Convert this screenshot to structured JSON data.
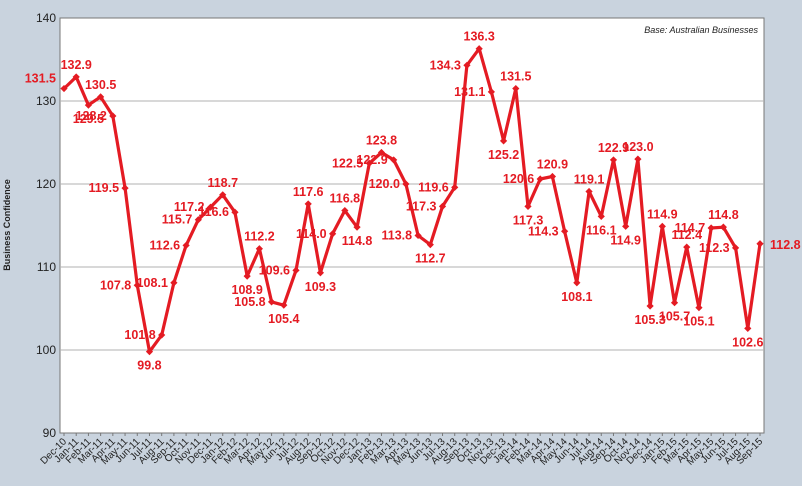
{
  "chart_data": {
    "type": "line",
    "title": "",
    "xlabel": "",
    "ylabel": "Business Confidence",
    "note": "Base: Australian Businesses",
    "ylim": [
      90,
      140
    ],
    "yticks": [
      90,
      100,
      110,
      120,
      130,
      140
    ],
    "grid": true,
    "line_color": "#e41b23",
    "categories": [
      "Dec-10",
      "Jan-11",
      "Feb-11",
      "Mar-11",
      "Apr-11",
      "May-11",
      "Jun-11",
      "Jul-11",
      "Aug-11",
      "Sep-11",
      "Oct-11",
      "Nov-11",
      "Dec-11",
      "Jan-12",
      "Feb-12",
      "Mar-12",
      "Apr-12",
      "May-12",
      "Jun-12",
      "Jul-12",
      "Aug-12",
      "Sep-12",
      "Oct-12",
      "Nov-12",
      "Dec-12",
      "Jan-13",
      "Feb-13",
      "Mar-13",
      "Apr-13",
      "May-13",
      "Jun-13",
      "Jul-13",
      "Aug-13",
      "Sep-13",
      "Oct-13",
      "Nov-13",
      "Dec-13",
      "Jan-14",
      "Feb-14",
      "Mar-14",
      "Apr-14",
      "May-14",
      "Jun-14",
      "Jul-14",
      "Aug-14",
      "Sep-14",
      "Oct-14",
      "Nov-14",
      "Dec-14",
      "Jan-15",
      "Feb-15",
      "Mar-15",
      "Apr-15",
      "May-15",
      "Jun-15",
      "Jul-15",
      "Aug-15",
      "Sep-15"
    ],
    "values": [
      131.5,
      132.9,
      129.5,
      130.5,
      128.2,
      119.5,
      107.8,
      99.8,
      101.8,
      108.1,
      112.6,
      115.7,
      117.2,
      118.7,
      116.6,
      108.9,
      112.2,
      105.8,
      105.4,
      109.6,
      117.6,
      109.3,
      114.0,
      116.8,
      114.8,
      122.5,
      123.8,
      122.9,
      120.0,
      113.8,
      112.7,
      117.3,
      119.6,
      134.3,
      136.3,
      131.1,
      125.2,
      131.5,
      117.3,
      120.6,
      120.9,
      114.3,
      108.1,
      119.1,
      116.1,
      122.9,
      114.9,
      123.0,
      105.3,
      114.9,
      105.7,
      112.4,
      105.1,
      114.7,
      114.8,
      112.3,
      102.6,
      112.8
    ],
    "data_labels": [
      "131.5",
      "132.9",
      "129.5",
      "130.5",
      "128.2",
      "119.5",
      "107.8",
      "99.8",
      "101.8",
      "108.1",
      "112.6",
      "115.7",
      "117.2",
      "118.7",
      "116.6",
      "108.9",
      "112.2",
      "105.8",
      "105.4",
      "109.6",
      "117.6",
      "109.3",
      "114.0",
      "116.8",
      "114.8",
      "122.5",
      "123.8",
      "122.9",
      "120.0",
      "113.8",
      "112.7",
      "117.3",
      "119.6",
      "134.3",
      "136.3",
      "131.1",
      "125.2",
      "131.5",
      "117.3",
      "120.6",
      "120.9",
      "114.3",
      "108.1",
      "119.1",
      "116.1",
      "122.9",
      "114.9",
      "123.0",
      "105.3",
      "114.9",
      "105.7",
      "112.4",
      "105.1",
      "114.7",
      "114.8",
      "112.3",
      "102.6",
      "112.8"
    ]
  }
}
